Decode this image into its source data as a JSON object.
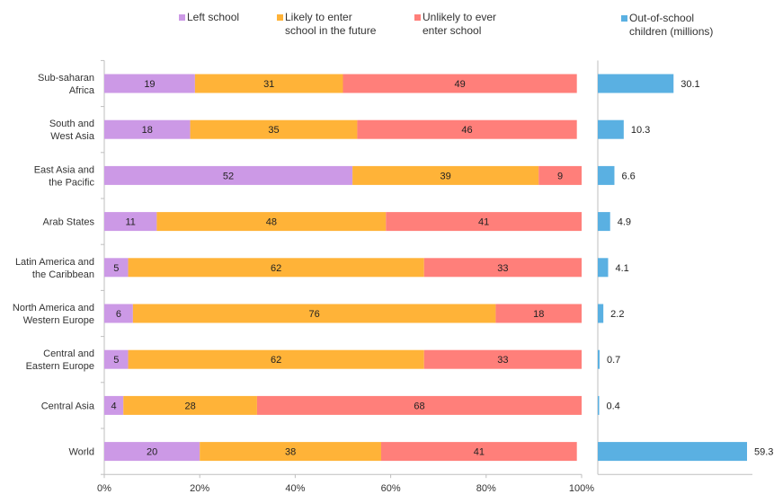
{
  "chart_data": {
    "type": "bar",
    "orientation": "horizontal",
    "stacked": true,
    "categories": [
      "Sub-saharan\nAfrica",
      "South and\nWest Asia",
      "East Asia and\nthe Pacific",
      "Arab States",
      "Latin America and\nthe Caribbean",
      "North America and\nWestern Europe",
      "Central and\nEastern Europe",
      "Central Asia",
      "World"
    ],
    "series": [
      {
        "name": "Left school",
        "color": "#cc99e6",
        "values": [
          19,
          18,
          52,
          11,
          5,
          6,
          5,
          4,
          20
        ]
      },
      {
        "name": "Likely to enter\nschool in the future",
        "color": "#ffb338",
        "values": [
          31,
          35,
          39,
          48,
          62,
          76,
          62,
          28,
          38
        ]
      },
      {
        "name": "Unlikely to ever\nenter school",
        "color": "#ff7f7a",
        "values": [
          49,
          46,
          9,
          41,
          33,
          18,
          33,
          68,
          41
        ]
      }
    ],
    "x_ticks": [
      "0%",
      "20%",
      "40%",
      "60%",
      "80%",
      "100%"
    ],
    "xlim": [
      0,
      100
    ],
    "grid": false,
    "legend_position": "top",
    "side_series": {
      "name": "Out-of-school\nchildren (millions)",
      "color": "#5ab0e2",
      "values": [
        30.1,
        10.3,
        6.6,
        4.9,
        4.1,
        2.2,
        0.7,
        0.4,
        59.3
      ],
      "labels": [
        "30.1",
        "10.3",
        "6.6",
        "4.9",
        "4.1",
        "2.2",
        "0.7",
        "0.4",
        "59.3"
      ]
    }
  }
}
